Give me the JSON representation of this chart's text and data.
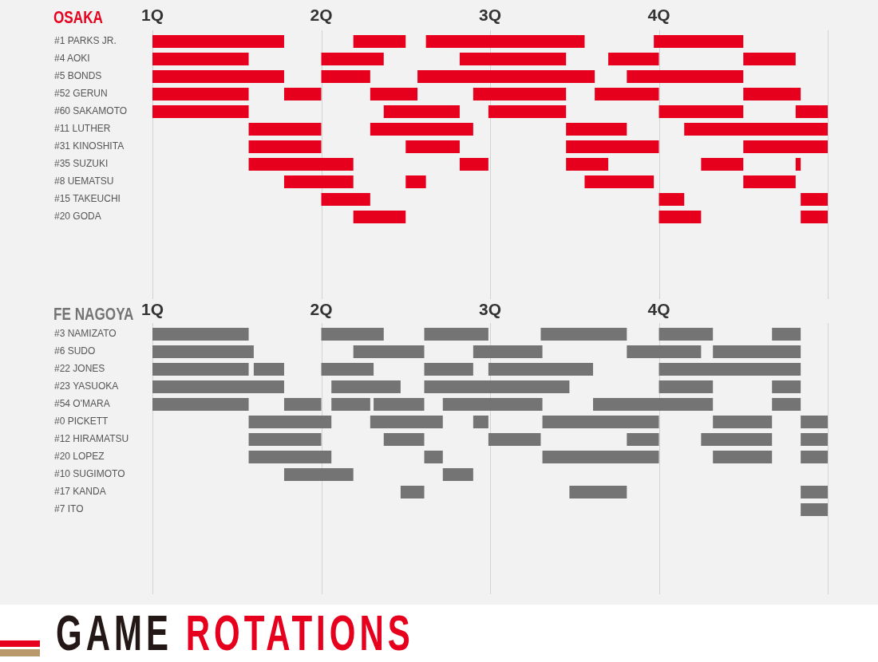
{
  "chart_data": [
    {
      "type": "bar",
      "orientation": "horizontal",
      "title": "OSAKA",
      "categories": [
        "#1 PARKS JR.",
        "#4 AOKI",
        "#5 BONDS",
        "#52 GERUN",
        "#60 SAKAMOTO",
        "#11 LUTHER",
        "#31 KINOSHITA",
        "#35 SUZUKI",
        "#8 UEMATSU",
        "#15 TAKEUCHI",
        "#20 GODA"
      ],
      "series": [
        {
          "color": "#e6001e",
          "base": [
            1,
            1,
            1,
            1,
            1,
            1.57,
            1.57,
            1.57,
            1.78,
            2,
            2.19
          ],
          "values": [
            0.78,
            0.57,
            0.78,
            0.57,
            0.57,
            0.43,
            0.43,
            0.62,
            0.41,
            0.29,
            0.31
          ]
        },
        {
          "color": "#e6001e",
          "base": [
            2.19,
            2,
            2,
            1.78,
            2.37,
            2.29,
            2.5,
            2.82,
            2.5,
            4,
            4
          ],
          "values": [
            0.31,
            0.37,
            0.29,
            0.22,
            0.45,
            0.61,
            0.32,
            0.17,
            0.12,
            0.15,
            0.25
          ]
        },
        {
          "color": "#e6001e",
          "base": [
            2.62,
            2.82,
            2.57,
            2.29,
            2.99,
            3.45,
            3.45,
            3.45,
            3.56,
            4.84,
            4.84
          ],
          "values": [
            0.94,
            0.63,
            1.05,
            0.28,
            0.46,
            0.36,
            0.55,
            0.25,
            0.41,
            0.16,
            0.16
          ]
        },
        {
          "color": "#e6001e",
          "base": [
            3.97,
            3.7,
            3.81,
            2.9,
            4,
            4.15,
            4.5,
            4.25,
            4.5,
            null,
            null
          ],
          "values": [
            0.53,
            0.3,
            0.69,
            0.55,
            0.5,
            0.85,
            0.5,
            0.25,
            0.31,
            null,
            null
          ]
        },
        {
          "color": "#e6001e",
          "base": [
            null,
            4.5,
            null,
            3.62,
            4.81,
            null,
            null,
            4.81,
            null,
            null,
            null
          ],
          "values": [
            null,
            0.31,
            null,
            0.38,
            0.19,
            null,
            null,
            0.03,
            null,
            null,
            null
          ]
        },
        {
          "color": "#e6001e",
          "base": [
            null,
            null,
            null,
            4.5,
            null,
            null,
            null,
            null,
            null,
            null,
            null
          ],
          "values": [
            null,
            null,
            null,
            0.34,
            null,
            null,
            null,
            null,
            null,
            null,
            null
          ]
        }
      ],
      "xlim": [
        1,
        5
      ],
      "xticks": [
        {
          "value": 1,
          "label": "1Q"
        },
        {
          "value": 2,
          "label": "2Q"
        },
        {
          "value": 3,
          "label": "3Q"
        },
        {
          "value": 4,
          "label": "4Q"
        },
        {
          "value": 5,
          "label": null
        }
      ],
      "grid": "x"
    },
    {
      "type": "bar",
      "orientation": "horizontal",
      "title": "FE NAGOYA",
      "categories": [
        "#3 NAMIZATO",
        "#6 SUDO",
        "#22 JONES",
        "#23 YASUOKA",
        "#54 O'MARA",
        "#0 PICKETT",
        "#12 HIRAMATSU",
        "#20 LOPEZ",
        "#10 SUGIMOTO",
        "#17 KANDA",
        "#7 ITO"
      ],
      "series": [
        {
          "color": "#747474",
          "base": [
            1,
            1,
            1,
            1,
            1,
            1.57,
            1.57,
            1.57,
            1.78,
            2.47,
            4.84
          ],
          "values": [
            0.57,
            0.6,
            0.57,
            0.78,
            0.57,
            0.49,
            0.43,
            0.49,
            0.41,
            0.14,
            0.16
          ]
        },
        {
          "color": "#747474",
          "base": [
            2,
            2.19,
            1.6,
            2.06,
            1.78,
            2.29,
            2.37,
            2.61,
            2.72,
            3.47,
            null
          ],
          "values": [
            0.37,
            0.42,
            0.18,
            0.41,
            0.22,
            0.43,
            0.24,
            0.11,
            0.18,
            0.34,
            null
          ]
        },
        {
          "color": "#747474",
          "base": [
            2.61,
            2.9,
            2,
            2.61,
            2.06,
            2.9,
            2.99,
            3.31,
            null,
            4.84,
            null
          ],
          "values": [
            0.38,
            0.41,
            0.31,
            0.86,
            0.23,
            0.09,
            0.31,
            0.69,
            null,
            0.16,
            null
          ]
        },
        {
          "color": "#747474",
          "base": [
            3.3,
            3.81,
            2.61,
            4,
            2.31,
            3.31,
            3.81,
            4.32,
            null,
            null,
            null
          ],
          "values": [
            0.51,
            0.44,
            0.29,
            0.32,
            0.3,
            0.69,
            0.19,
            0.35,
            null,
            null,
            null
          ]
        },
        {
          "color": "#747474",
          "base": [
            4,
            4.32,
            2.99,
            4.67,
            2.72,
            4.32,
            4.25,
            4.84,
            null,
            null,
            null
          ],
          "values": [
            0.32,
            0.52,
            0.62,
            0.17,
            0.59,
            0.35,
            0.42,
            0.16,
            null,
            null,
            null
          ]
        },
        {
          "color": "#747474",
          "base": [
            4.67,
            null,
            4,
            null,
            3.61,
            4.84,
            4.84,
            null,
            null,
            null,
            null
          ],
          "values": [
            0.17,
            null,
            0.84,
            null,
            0.71,
            0.16,
            0.16,
            null,
            null,
            null,
            null
          ]
        },
        {
          "color": "#747474",
          "base": [
            null,
            null,
            null,
            null,
            4.67,
            null,
            null,
            null,
            null,
            null,
            null
          ],
          "values": [
            null,
            null,
            null,
            null,
            0.17,
            null,
            null,
            null,
            null,
            null,
            null
          ]
        }
      ],
      "xlim": [
        1,
        5
      ],
      "xticks": [
        {
          "value": 1,
          "label": "1Q"
        },
        {
          "value": 2,
          "label": "2Q"
        },
        {
          "value": 3,
          "label": "3Q"
        },
        {
          "value": 4,
          "label": "4Q"
        },
        {
          "value": 5,
          "label": null
        }
      ],
      "grid": "x"
    },
    {
      "type": "other",
      "title": "GAME ROTATIONS"
    }
  ]
}
